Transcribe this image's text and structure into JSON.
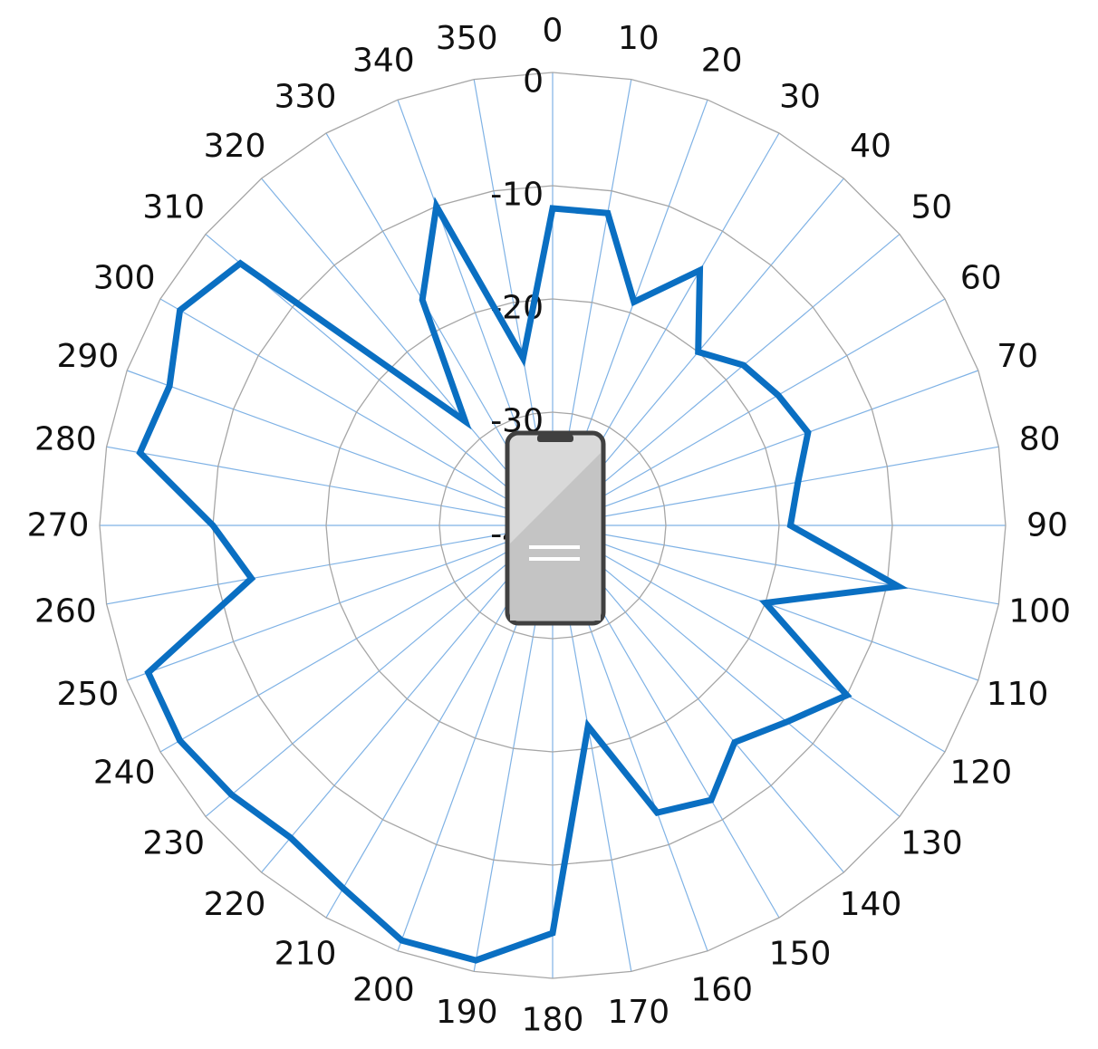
{
  "chart_data": {
    "type": "line",
    "polar": true,
    "title": "",
    "angle_labels": [
      "0",
      "10",
      "20",
      "30",
      "40",
      "50",
      "60",
      "70",
      "80",
      "90",
      "100",
      "110",
      "120",
      "130",
      "140",
      "150",
      "160",
      "170",
      "180",
      "190",
      "200",
      "210",
      "220",
      "230",
      "240",
      "250",
      "260",
      "270",
      "280",
      "290",
      "300",
      "310",
      "320",
      "330",
      "340",
      "350"
    ],
    "radial_labels": [
      "0",
      "-10",
      "-20",
      "-30",
      "-40"
    ],
    "rlim": [
      -40,
      0
    ],
    "grid": true,
    "center_icon": "smartphone-icon",
    "colors": {
      "series": "#0a6fc2",
      "spokes": "#7fb2e5",
      "rings": "#a6a6a6",
      "phone_body": "#d9d9d9",
      "phone_border": "#404040"
    },
    "series": [
      {
        "theta": [
          0,
          10,
          20,
          30,
          40,
          50,
          60,
          70,
          80,
          90,
          100,
          110,
          120,
          130,
          140,
          150,
          160,
          170,
          180,
          190,
          200,
          210,
          220,
          230,
          240,
          250,
          260,
          270,
          280,
          290,
          300,
          310,
          320,
          330,
          340,
          350
        ],
        "r": [
          -12,
          -12,
          -19,
          -14,
          -20,
          -18,
          -17,
          -16,
          -18,
          -19,
          -9,
          -20,
          -10,
          -13,
          -15,
          -12,
          -13,
          -22,
          -4,
          -1,
          -1,
          -3,
          -4,
          -3,
          -2,
          -2,
          -13,
          -10,
          -3,
          -4,
          -2,
          -4,
          -28,
          -17,
          -10,
          -25
        ]
      }
    ]
  }
}
